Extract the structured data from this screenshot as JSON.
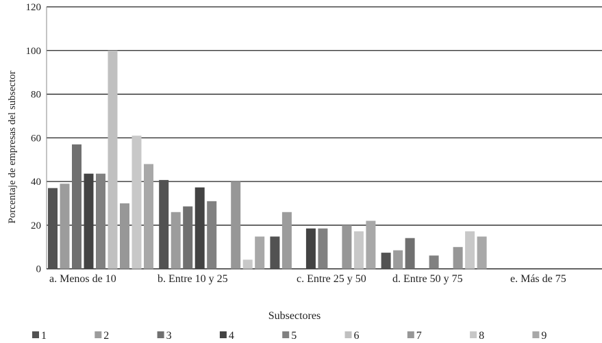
{
  "chart_data": {
    "type": "bar",
    "title": "",
    "xlabel": "Subsectores",
    "ylabel": "Porcentaje de empresas del subsector",
    "ylim": [
      0,
      120
    ],
    "yticks": [
      0,
      20,
      40,
      60,
      80,
      100,
      120
    ],
    "grid": true,
    "legend_position": "bottom",
    "categories": [
      "a. Menos de 10",
      "b. Entre 10 y 25",
      "c. Entre 25 y 50",
      "d. Entre 50 y 75",
      "e. Más de 75"
    ],
    "series": [
      {
        "name": "1",
        "color": "#525252",
        "values": [
          37,
          40.7,
          14.8,
          7.4,
          0
        ]
      },
      {
        "name": "2",
        "color": "#9c9c9c",
        "values": [
          39,
          26,
          26,
          8.5,
          0
        ]
      },
      {
        "name": "3",
        "color": "#707070",
        "values": [
          57,
          28.6,
          0,
          14.1,
          0
        ]
      },
      {
        "name": "4",
        "color": "#434343",
        "values": [
          43.6,
          37.3,
          18.5,
          0,
          0
        ]
      },
      {
        "name": "5",
        "color": "#818181",
        "values": [
          43.6,
          31,
          18.5,
          6.1,
          0
        ]
      },
      {
        "name": "6",
        "color": "#c0c0c0",
        "values": [
          100,
          0,
          0,
          0,
          0
        ]
      },
      {
        "name": "7",
        "color": "#979797",
        "values": [
          30,
          40,
          20,
          10,
          0
        ]
      },
      {
        "name": "8",
        "color": "#c8c8c8",
        "values": [
          61,
          4.2,
          17.2,
          17.2,
          0
        ]
      },
      {
        "name": "9",
        "color": "#a8a8a8",
        "values": [
          48,
          14.8,
          22,
          14.8,
          0
        ]
      }
    ]
  }
}
